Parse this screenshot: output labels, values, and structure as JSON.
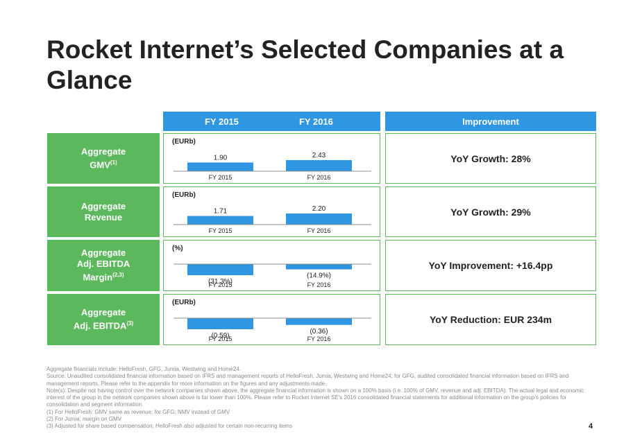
{
  "title": "Rocket Internet’s Selected Companies at a Glance",
  "header": {
    "fy2015": "FY 2015",
    "fy2016": "FY 2016",
    "improvement": "Improvement"
  },
  "rows": [
    {
      "label": "Aggregate GMV",
      "sup": "(1)",
      "unit": "(EURb)",
      "improvement": "YoY Growth: 28%"
    },
    {
      "label": "Aggregate Revenue",
      "sup": "",
      "unit": "(EURb)",
      "improvement": "YoY Growth: 29%"
    },
    {
      "label": "Aggregate Adj. EBITDA Margin",
      "sup": "(2,3)",
      "unit": "(%)",
      "improvement": "YoY Improvement: +16.4pp"
    },
    {
      "label": "Aggregate Adj. EBITDA",
      "sup": "(3)",
      "unit": "(EURb)",
      "improvement": "YoY Reduction: EUR 234m"
    }
  ],
  "chart_data": [
    {
      "type": "bar",
      "categories": [
        "FY 2015",
        "FY 2016"
      ],
      "values": [
        1.9,
        2.43
      ],
      "labels": [
        "1.90",
        "2.43"
      ],
      "ylabel": "(EURb)"
    },
    {
      "type": "bar",
      "categories": [
        "FY 2015",
        "FY 2016"
      ],
      "values": [
        1.71,
        2.2
      ],
      "labels": [
        "1.71",
        "2.20"
      ],
      "ylabel": "(EURb)"
    },
    {
      "type": "bar",
      "categories": [
        "FY 2015",
        "FY 2016"
      ],
      "values": [
        -31.3,
        -14.9
      ],
      "labels": [
        "(31.3%)",
        "(14.9%)"
      ],
      "ylabel": "(%)"
    },
    {
      "type": "bar",
      "categories": [
        "FY 2015",
        "FY 2016"
      ],
      "values": [
        -0.59,
        -0.36
      ],
      "labels": [
        "(0.59)",
        "(0.36)"
      ],
      "ylabel": "(EURb)"
    }
  ],
  "footnotes": [
    "Aggregate financials include: HelloFresh, GFG, Jumia, Westwing and Home24.",
    "Source: Unaudited consolidated financial information based on IFRS and management reports of HelloFresh, Jumia, Westwing and Home24; for GFG, audited consolidated financial information based on IFRS and management reports. Please refer to the appendix for more information on the figures and any adjustments made.",
    "Note(s): Despite not having control over the network companies shown above, the aggregate financial information is shown on a 100% basis (i.e. 100% of GMV, revenue and adj. EBITDA). The actual legal and economic interest of the group in the network companies shown above is far lower than 100%. Please refer to Rocket Internet SE’s 2016 consolidated financial statements for additional information on the group’s policies for consolidation and segment information.",
    "(1)   For HelloFresh: GMV same as revenue; for GFG: NMV instead of GMV",
    "(2)   For Jumia: margin on GMV",
    "(3)   Adjusted for share based compensation; HelloFresh also adjusted for certain non-recurring items"
  ],
  "page_number": "4",
  "colors": {
    "header": "#2f96e2",
    "label": "#5cb85c",
    "bar": "#2f96e2",
    "axis": "#8c8c8c"
  }
}
